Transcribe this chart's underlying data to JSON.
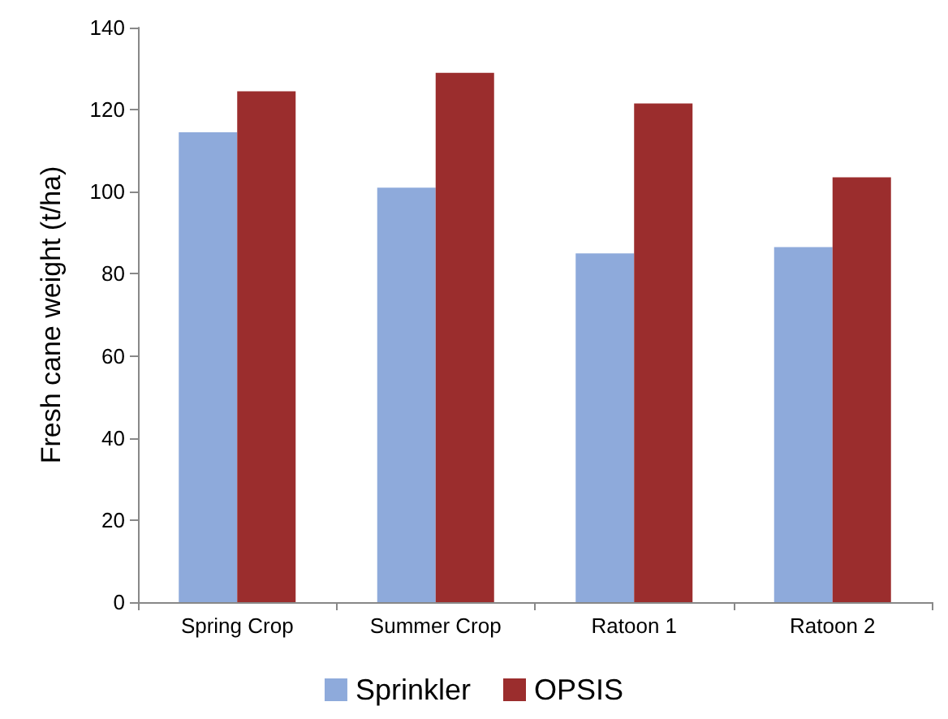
{
  "chart_data": {
    "type": "bar",
    "ylabel": "Fresh cane weight (t/ha)",
    "categories": [
      "Spring Crop",
      "Summer Crop",
      "Ratoon 1",
      "Ratoon 2"
    ],
    "series": [
      {
        "name": "Sprinkler",
        "color": "#8eaadb",
        "values": [
          114.5,
          101,
          85,
          86.5
        ]
      },
      {
        "name": "OPSIS",
        "color": "#9b2d2d",
        "values": [
          124.5,
          129,
          121.5,
          103.5
        ]
      }
    ],
    "ylim": [
      0,
      140
    ],
    "yticks": [
      0,
      20,
      40,
      60,
      80,
      100,
      120,
      140
    ],
    "grid": false,
    "legend": "bottom"
  }
}
